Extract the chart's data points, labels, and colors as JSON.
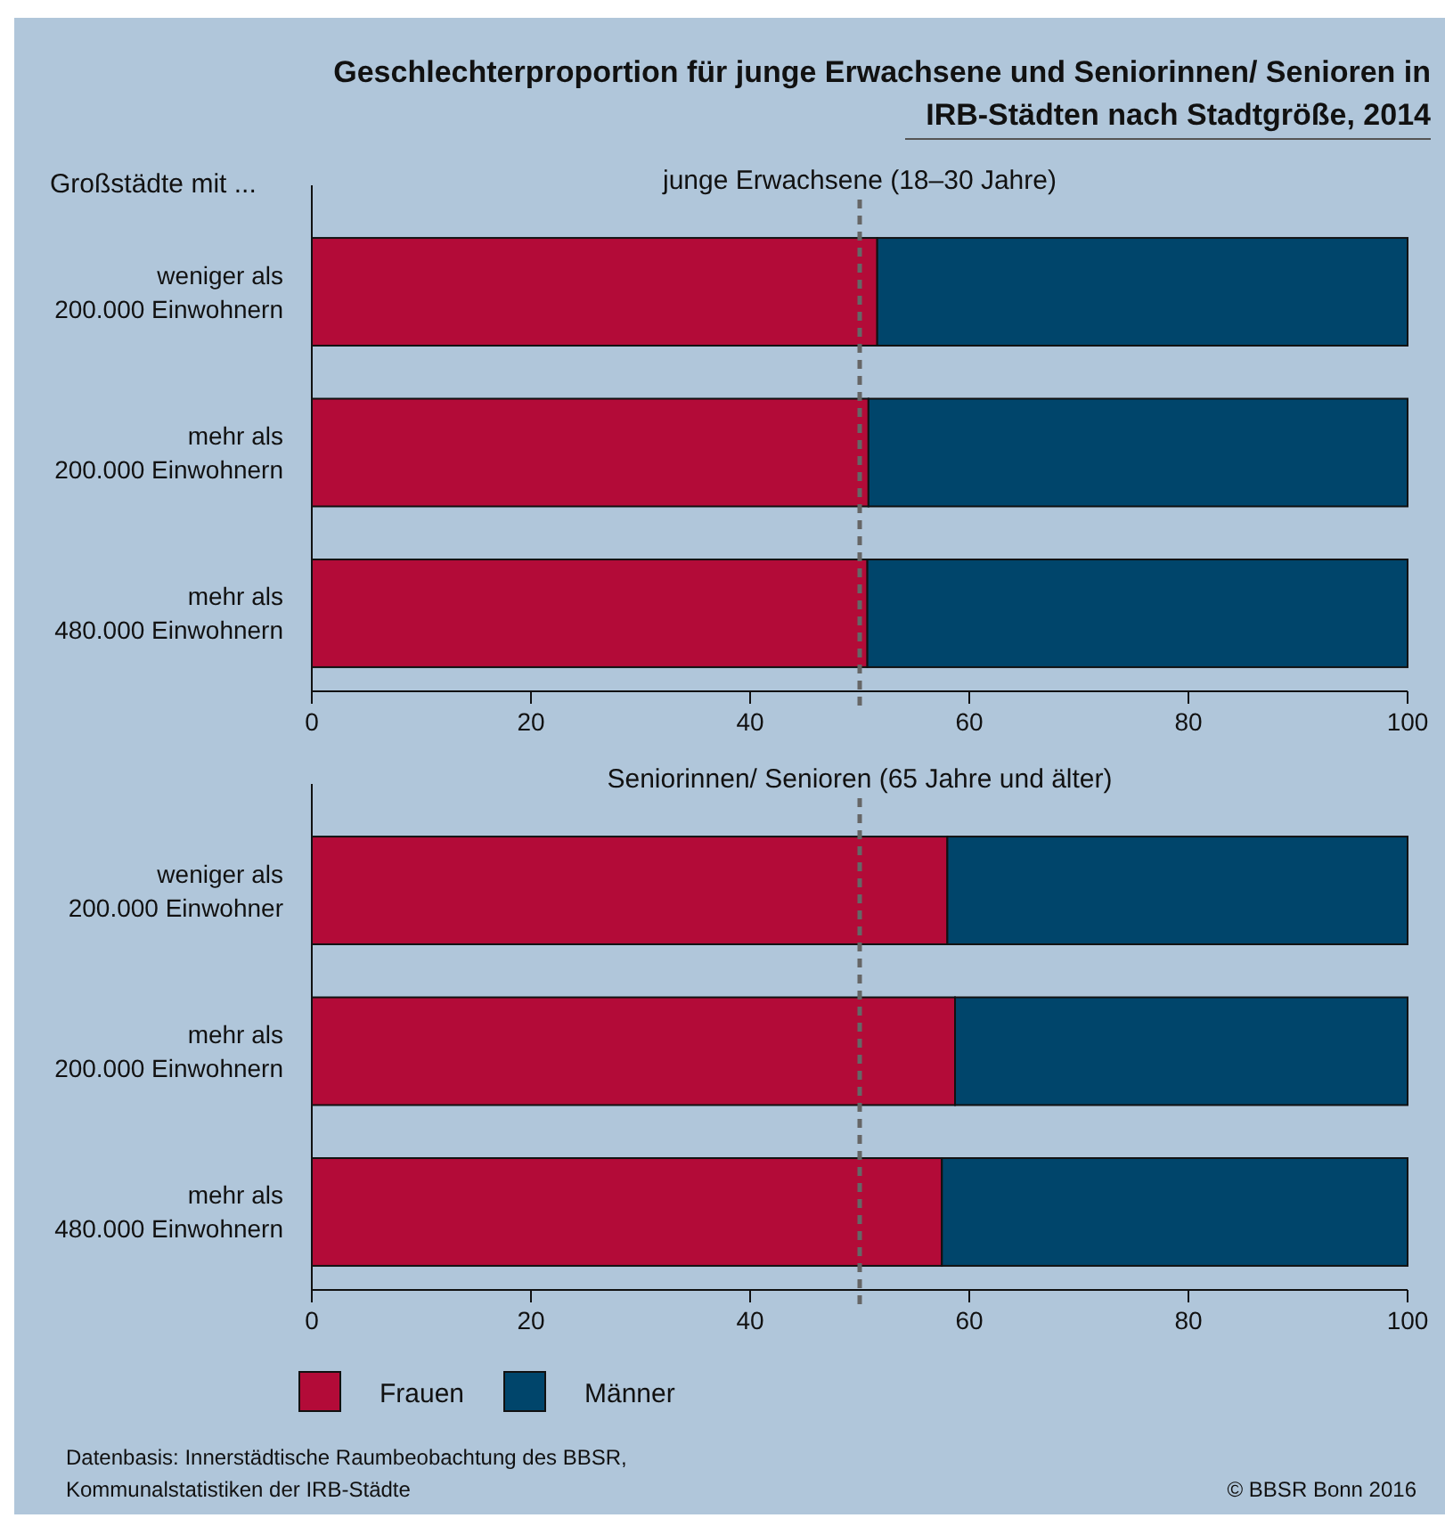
{
  "chart_data": [
    {
      "type": "bar",
      "orientation": "horizontal",
      "stacked": true,
      "title": "Geschlechterproportion für junge Erwachsene und Seniorinnen/ Senioren in IRB-Städten nach Stadtgröße, 2014",
      "subtitle": "junge Erwachsene (18–30 Jahre)",
      "ylabel": "Großstädte mit ...",
      "categories": [
        "weniger als 200.000 Einwohnern",
        "mehr als 200.000 Einwohnern",
        "mehr als 480.000 Einwohnern"
      ],
      "series": [
        {
          "color": "#b30b38",
          "values": [
            51.6,
            50.8,
            50.7
          ]
        },
        {
          "color": "#00456b",
          "values": [
            48.4,
            49.2,
            49.3
          ]
        }
      ],
      "xlim": [
        0,
        100
      ],
      "xticks": [
        0,
        20,
        40,
        60,
        80,
        100
      ],
      "ref_lines": [
        {
          "axis": "x",
          "value": 50,
          "color": "#666666",
          "line_style": "dashed"
        }
      ],
      "grid": false
    },
    {
      "type": "bar",
      "orientation": "horizontal",
      "stacked": true,
      "subtitle": "Seniorinnen/ Senioren (65 Jahre und älter)",
      "categories": [
        "weniger als 200.000 Einwohner",
        "mehr als 200.000 Einwohnern",
        "mehr als 480.000 Einwohnern"
      ],
      "series": [
        {
          "name": "Frauen",
          "color": "#b30b38",
          "values": [
            58.0,
            58.7,
            57.5
          ]
        },
        {
          "name": "Männer",
          "color": "#00456b",
          "values": [
            42.0,
            41.3,
            42.5
          ]
        }
      ],
      "xlim": [
        0,
        100
      ],
      "xticks": [
        0,
        20,
        40,
        60,
        80,
        100
      ],
      "ref_lines": [
        {
          "axis": "x",
          "value": 50,
          "color": "#666666",
          "line_style": "dashed"
        }
      ],
      "grid": false,
      "legend": "bottom left",
      "annotations": [
        "Datenbasis: Innerstädtische Raumbeobachtung des BBSR, Kommunalstatistiken der IRB-Städte",
        "© BBSR Bonn 2016"
      ]
    }
  ]
}
